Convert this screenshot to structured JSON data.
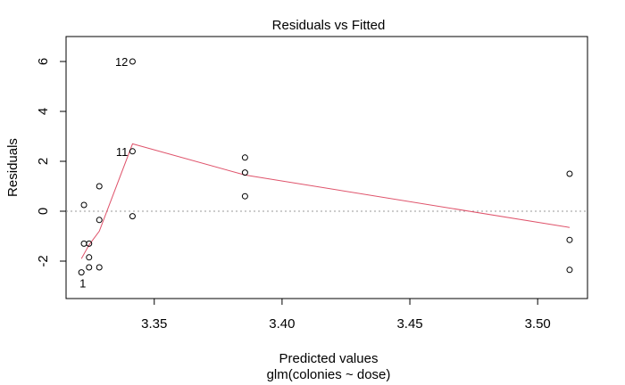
{
  "chart_data": {
    "type": "scatter",
    "title": "Residuals vs Fitted",
    "xlabel": "Predicted values",
    "xsublabel": "glm(colonies ~ dose)",
    "ylabel": "Residuals",
    "xlim": [
      3.3155,
      3.5195
    ],
    "ylim": [
      -3.5,
      7.0
    ],
    "xticks": [
      3.35,
      3.4,
      3.45,
      3.5
    ],
    "xtick_labels": [
      "3.35",
      "3.40",
      "3.45",
      "3.50"
    ],
    "yticks": [
      -2,
      0,
      2,
      4,
      6
    ],
    "ytick_labels": [
      "-2",
      "0",
      "2",
      "4",
      "6"
    ],
    "reference_line_y": 0,
    "points": [
      {
        "x": 3.3225,
        "y": 0.25
      },
      {
        "x": 3.3225,
        "y": -1.3
      },
      {
        "x": 3.3245,
        "y": -1.3
      },
      {
        "x": 3.3245,
        "y": -1.85
      },
      {
        "x": 3.3245,
        "y": -2.25
      },
      {
        "x": 3.3215,
        "y": -2.45
      },
      {
        "x": 3.3285,
        "y": 1.0
      },
      {
        "x": 3.3285,
        "y": -0.35
      },
      {
        "x": 3.3285,
        "y": -2.25
      },
      {
        "x": 3.3415,
        "y": 6.0
      },
      {
        "x": 3.3415,
        "y": 2.4
      },
      {
        "x": 3.3415,
        "y": -0.2
      },
      {
        "x": 3.3855,
        "y": 2.15
      },
      {
        "x": 3.3855,
        "y": 1.55
      },
      {
        "x": 3.3855,
        "y": 0.6
      },
      {
        "x": 3.5125,
        "y": 1.5
      },
      {
        "x": 3.5125,
        "y": -1.15
      },
      {
        "x": 3.5125,
        "y": -2.35
      }
    ],
    "point_labels": [
      {
        "text": "12",
        "x": 3.3415,
        "y": 6.0,
        "side": "left"
      },
      {
        "text": "11",
        "x": 3.3415,
        "y": 2.4,
        "side": "left"
      },
      {
        "text": "1",
        "x": 3.3245,
        "y": -2.45,
        "side": "below"
      }
    ],
    "smoother": {
      "color": "#DF536B",
      "x": [
        3.3215,
        3.3245,
        3.3285,
        3.3415,
        3.3855,
        3.5125
      ],
      "y": [
        -1.9,
        -1.35,
        -0.8,
        2.7,
        1.45,
        -0.65
      ]
    },
    "grid": false,
    "legend": "none"
  }
}
